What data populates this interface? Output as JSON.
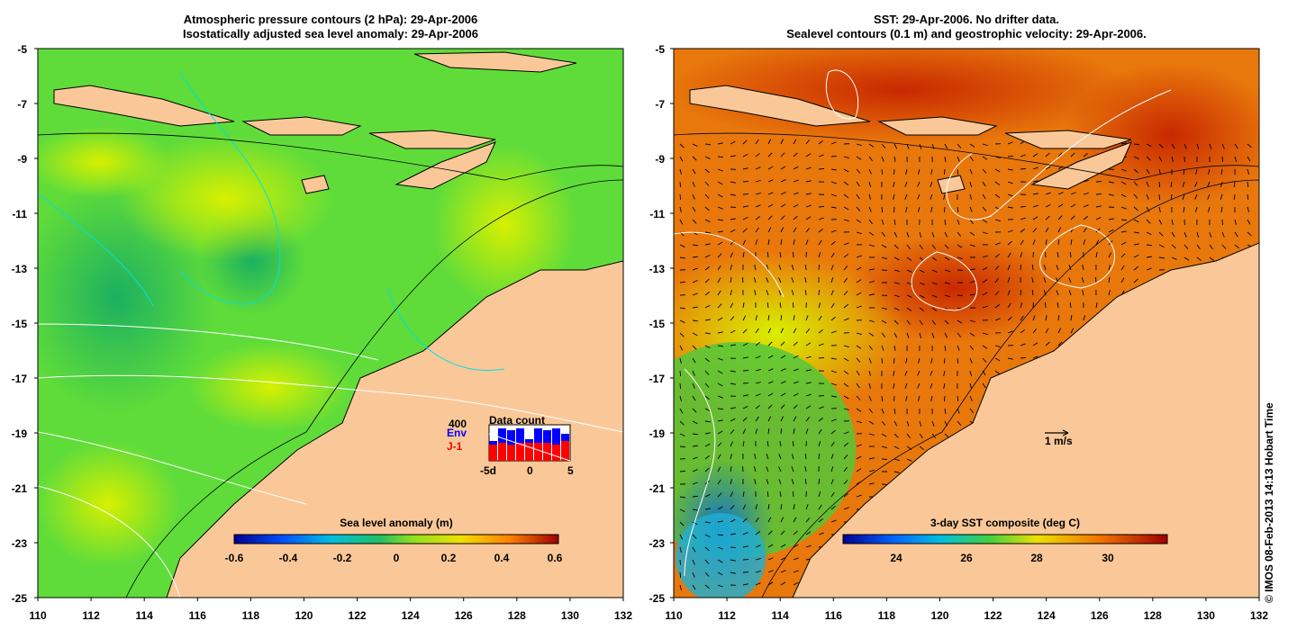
{
  "left_panel": {
    "title_line1": "Atmospheric pressure contours (2 hPa): 29-Apr-2006",
    "title_line2": "Isostatically adjusted sea level anomaly: 29-Apr-2006",
    "colorbar_label": "Sea level anomaly (m)",
    "colorbar_ticks": [
      "-0.6",
      "-0.4",
      "-0.2",
      "0",
      "0.2",
      "0.4",
      "0.6"
    ],
    "inset": {
      "title": "Data count",
      "count_label": "400",
      "series1": "Env",
      "series2": "J-1",
      "series1_color": "#0000ff",
      "series2_color": "#ff0000",
      "x_ticks": [
        "-5d",
        "0",
        "5"
      ],
      "env_values": [
        0.55,
        0.9,
        0.85,
        0.9,
        0.6,
        0.9,
        0.85,
        0.9,
        0.75
      ],
      "j1_values": [
        0.45,
        0.5,
        0.45,
        0.5,
        0.5,
        0.5,
        0.5,
        0.45,
        0.55
      ]
    }
  },
  "right_panel": {
    "title_line1": "SST: 29-Apr-2006. No drifter data.",
    "title_line2": "Sealevel contours (0.1 m) and geostrophic velocity: 29-Apr-2006.",
    "colorbar_label": "3-day SST composite (deg C)",
    "colorbar_ticks": [
      "24",
      "26",
      "28",
      "30"
    ],
    "scale_label": "1 m/s"
  },
  "axes": {
    "lat_ticks": [
      "-5",
      "-7",
      "-9",
      "-11",
      "-13",
      "-15",
      "-17",
      "-19",
      "-21",
      "-23",
      "-25"
    ],
    "lon_ticks": [
      "110",
      "112",
      "114",
      "116",
      "118",
      "120",
      "122",
      "124",
      "126",
      "128",
      "130",
      "132"
    ]
  },
  "credit": "© IMOS 08-Feb-2013 14:13 Hobart Time",
  "colors": {
    "land": "#fac898",
    "anomaly_green": "#5fdc3a",
    "sst_orange": "#e8780c"
  }
}
